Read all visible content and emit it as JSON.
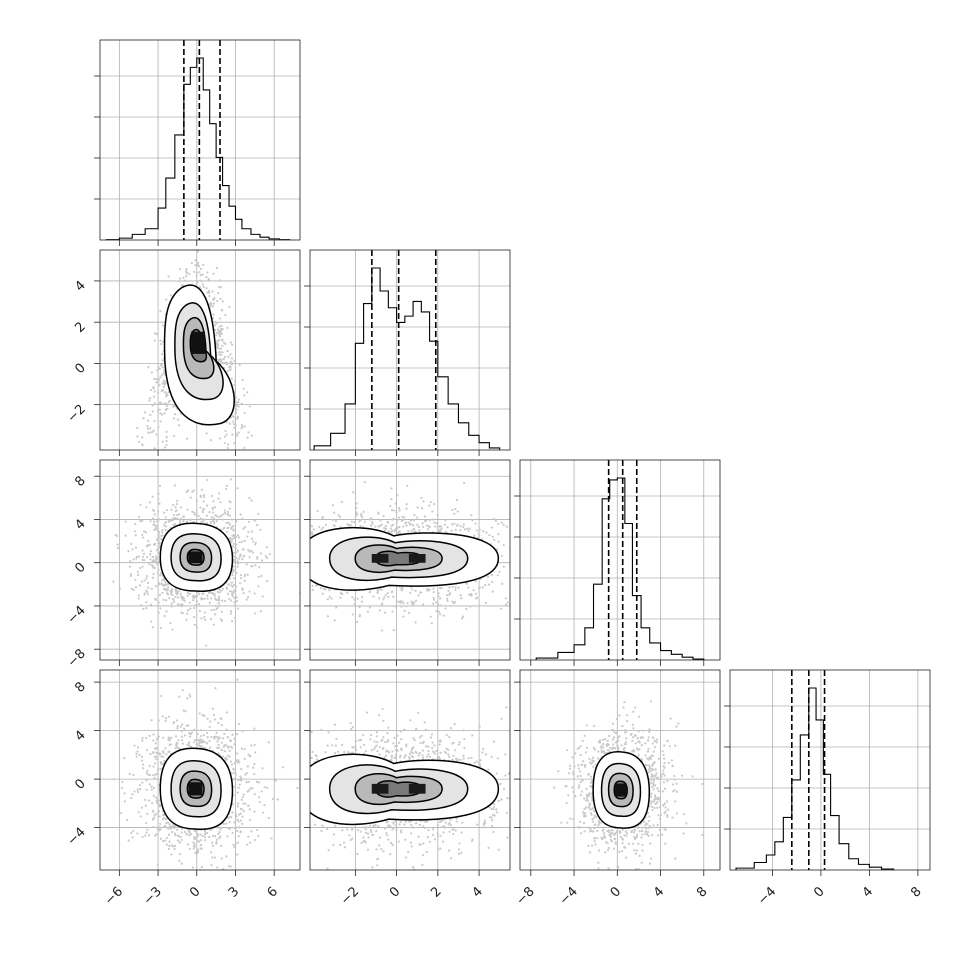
{
  "chart_data": {
    "type": "corner",
    "grid": true,
    "params": [
      {
        "range": [
          -7.5,
          8.0
        ],
        "ticks": [
          -6,
          -3,
          0,
          3,
          6
        ],
        "tick_labels": [
          "−6",
          "−3",
          "0",
          "3",
          "6"
        ],
        "quantiles": [
          -1.0,
          0.2,
          1.8
        ],
        "hist_bins": [
          -7.0,
          -6.0,
          -5.0,
          -4.0,
          -3.0,
          -2.4,
          -1.7,
          -1.0,
          -0.5,
          0.0,
          0.5,
          1.0,
          1.5,
          2.0,
          2.5,
          3.0,
          3.5,
          4.2,
          4.9,
          5.6,
          6.4,
          7.2
        ],
        "hist_counts": [
          0.002,
          0.01,
          0.03,
          0.06,
          0.17,
          0.33,
          0.56,
          0.83,
          0.92,
          0.97,
          0.8,
          0.62,
          0.44,
          0.29,
          0.18,
          0.11,
          0.06,
          0.03,
          0.015,
          0.006,
          0.002
        ]
      },
      {
        "range": [
          -4.2,
          5.5
        ],
        "ticks": [
          -2,
          0,
          2,
          4
        ],
        "tick_labels": [
          "−2",
          "0",
          "2",
          "4"
        ],
        "quantiles": [
          -1.2,
          0.1,
          1.9
        ],
        "hist_bins": [
          -4.0,
          -3.2,
          -2.5,
          -2.0,
          -1.6,
          -1.2,
          -0.8,
          -0.4,
          0.0,
          0.4,
          0.8,
          1.2,
          1.6,
          2.0,
          2.5,
          3.0,
          3.5,
          4.0,
          4.5,
          5.0
        ],
        "hist_counts": [
          0.02,
          0.08,
          0.22,
          0.51,
          0.7,
          0.87,
          0.76,
          0.68,
          0.61,
          0.64,
          0.71,
          0.66,
          0.52,
          0.35,
          0.22,
          0.13,
          0.07,
          0.035,
          0.01
        ]
      },
      {
        "range": [
          -9.0,
          9.5
        ],
        "ticks": [
          -8,
          -4,
          0,
          4,
          8
        ],
        "tick_labels": [
          "−8",
          "−4",
          "0",
          "4",
          "8"
        ],
        "quantiles": [
          -0.8,
          0.5,
          1.8
        ],
        "hist_bins": [
          -7.5,
          -5.5,
          -4.0,
          -3.0,
          -2.2,
          -1.4,
          -0.7,
          0.0,
          0.7,
          1.4,
          2.2,
          3.0,
          4.0,
          5.0,
          6.0,
          7.0,
          8.0
        ],
        "hist_counts": [
          0.01,
          0.04,
          0.08,
          0.17,
          0.4,
          0.85,
          0.95,
          0.96,
          0.72,
          0.34,
          0.17,
          0.09,
          0.05,
          0.03,
          0.015,
          0.005
        ]
      },
      {
        "range": [
          -7.5,
          9.0
        ],
        "ticks": [
          -4,
          0,
          4,
          8
        ],
        "tick_labels": [
          "−4",
          "0",
          "4",
          "8"
        ],
        "quantiles": [
          -2.4,
          -1.0,
          0.3
        ],
        "hist_bins": [
          -7.0,
          -5.5,
          -4.5,
          -3.8,
          -3.1,
          -2.4,
          -1.7,
          -1.0,
          -0.4,
          0.2,
          0.8,
          1.5,
          2.3,
          3.1,
          4.0,
          5.0,
          6.0
        ],
        "hist_counts": [
          0.01,
          0.04,
          0.08,
          0.15,
          0.28,
          0.48,
          0.72,
          0.97,
          0.8,
          0.51,
          0.29,
          0.14,
          0.06,
          0.03,
          0.015,
          0.005
        ]
      }
    ],
    "pairs": [
      {
        "row": 1,
        "col": 0,
        "shape": "banana",
        "center": [
          0.1,
          1.0
        ],
        "spread": [
          1.2,
          1.3
        ]
      },
      {
        "row": 2,
        "col": 0,
        "shape": "ellipse",
        "center": [
          -0.1,
          0.5
        ],
        "spread": [
          1.4,
          1.6
        ]
      },
      {
        "row": 2,
        "col": 1,
        "shape": "bimodal",
        "center": [
          0.1,
          0.4
        ],
        "spread": [
          1.6,
          1.5
        ],
        "modes": [
          -1.2,
          1.2
        ]
      },
      {
        "row": 3,
        "col": 0,
        "shape": "ellipse",
        "center": [
          -0.1,
          -0.8
        ],
        "spread": [
          1.4,
          1.7
        ]
      },
      {
        "row": 3,
        "col": 1,
        "shape": "bimodal",
        "center": [
          0.1,
          -0.8
        ],
        "spread": [
          1.6,
          1.5
        ],
        "modes": [
          -1.2,
          1.2
        ]
      },
      {
        "row": 3,
        "col": 2,
        "shape": "ellipse",
        "center": [
          0.3,
          -0.9
        ],
        "spread": [
          1.3,
          1.6
        ]
      }
    ]
  }
}
